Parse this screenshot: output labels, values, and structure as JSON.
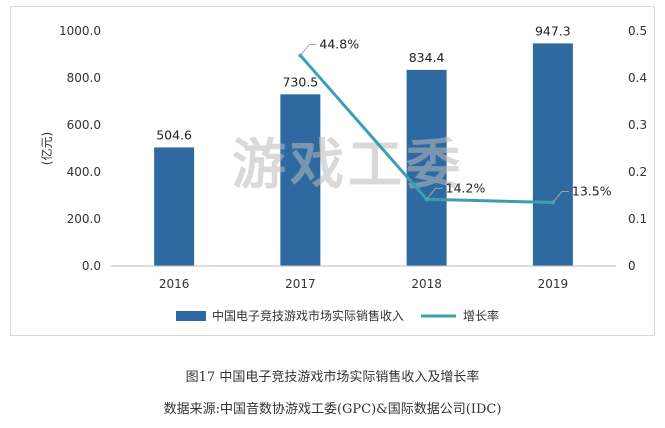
{
  "watermark": "游戏工委",
  "caption": {
    "title": "图17  中国电子竞技游戏市场实际销售收入及增长率",
    "source": "数据来源:中国音数协游戏工委(GPC)&国际数据公司(IDC)"
  },
  "chart_data": {
    "type": "bar",
    "categories": [
      "2016",
      "2017",
      "2018",
      "2019"
    ],
    "series": [
      {
        "name": "中国电子竞技游戏市场实际销售收入",
        "type": "bar",
        "axis": "left",
        "values": [
          504.6,
          730.5,
          834.4,
          947.3
        ],
        "labels": [
          "504.6",
          "730.5",
          "834.4",
          "947.3"
        ],
        "color": "#2e6aa1"
      },
      {
        "name": "增长率",
        "type": "line",
        "axis": "right",
        "values": [
          null,
          0.448,
          0.142,
          0.135
        ],
        "labels": [
          "",
          "44.8%",
          "14.2%",
          "13.5%"
        ],
        "color": "#3a9fb0"
      }
    ],
    "ylabel": "(亿元)",
    "ylim": [
      0,
      1000
    ],
    "y_ticks": [
      "0.0",
      "200.0",
      "400.0",
      "600.0",
      "800.0",
      "1000.0"
    ],
    "y2lim": [
      0,
      0.5
    ],
    "y2_ticks": [
      "0",
      "0.1",
      "0.2",
      "0.3",
      "0.4",
      "0.5"
    ],
    "grid": false,
    "legend_position": "bottom"
  }
}
